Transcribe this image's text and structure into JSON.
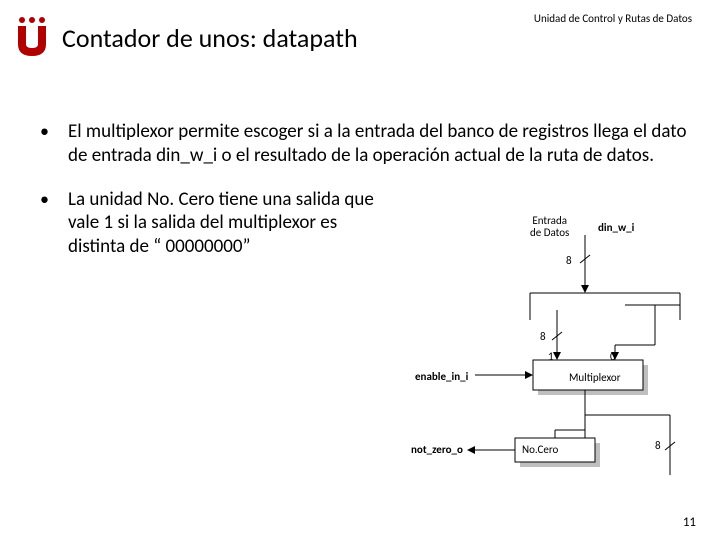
{
  "header": {
    "subtitle": "Unidad de Control y Rutas de Datos"
  },
  "title": "Contador de unos: datapath",
  "bullets": [
    "El multiplexor permite escoger si a la entrada del banco de registros llega el dato de entrada din_w_i o el resultado de la operación actual de la ruta de datos.",
    "La unidad No. Cero tiene una salida que vale 1 si la salida del multiplexor es distinta de “ 00000000”"
  ],
  "diagram": {
    "labels": {
      "entrada": "Entrada\nde Datos",
      "din": "din_w_i",
      "bus8a": "8",
      "bus8b": "8",
      "bus8c": "8",
      "enable": "enable_in_i",
      "notzero": "not_zero_o",
      "mux_in1": "1",
      "mux_in0": "0",
      "mux": "Multiplexor",
      "nocero": "No.Cero"
    },
    "colors": {
      "line": "#000000",
      "box_fill": "#ffffff",
      "shadow": "#bfbfbf",
      "slash": "#000000"
    }
  },
  "page_number": "11",
  "logo_color": "#b00000"
}
